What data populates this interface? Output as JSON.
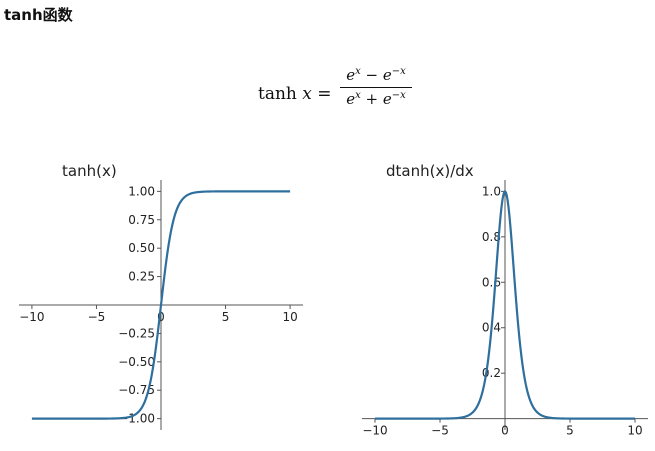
{
  "heading": "tanh函数",
  "formula": {
    "lhs": "tanh",
    "lhs_var": "x",
    "equals": "=",
    "numerator": {
      "a": "e",
      "a_exp": "x",
      "op": "−",
      "b": "e",
      "b_exp": "−x"
    },
    "denominator": {
      "a": "e",
      "a_exp": "x",
      "op": "+",
      "b": "e",
      "b_exp": "−x"
    }
  },
  "colors": {
    "curve": "#2e6f9e",
    "axis": "#555555",
    "text": "#222222"
  },
  "chart_data": [
    {
      "type": "line",
      "title": "tanh(x)",
      "function": "tanh",
      "xlim": [
        -11,
        11
      ],
      "ylim": [
        -1.1,
        1.1
      ],
      "xticks": [
        -10,
        -5,
        0,
        5,
        10
      ],
      "xtick_labels": [
        "−10",
        "−5",
        "0",
        "5",
        "10"
      ],
      "yticks": [
        1.0,
        0.75,
        0.5,
        0.25,
        -0.25,
        -0.5,
        -0.75,
        -1.0
      ],
      "ytick_labels": [
        "1.00",
        "0.75",
        "0.50",
        "0.25",
        "−0.25",
        "−0.50",
        "−0.75",
        "−1.00"
      ],
      "x": [
        -10,
        -5,
        -3,
        -2,
        -1,
        -0.5,
        0,
        0.5,
        1,
        2,
        3,
        5,
        10
      ],
      "y": [
        -1.0,
        -0.9999,
        -0.995,
        -0.964,
        -0.762,
        -0.462,
        0.0,
        0.462,
        0.762,
        0.964,
        0.995,
        0.9999,
        1.0
      ],
      "grid": false
    },
    {
      "type": "line",
      "title": "dtanh(x)/dx",
      "function": "dtanh",
      "xlim": [
        -11,
        11
      ],
      "ylim": [
        -0.05,
        1.05
      ],
      "xticks": [
        -10,
        -5,
        0,
        5,
        10
      ],
      "xtick_labels": [
        "−10",
        "−5",
        "0",
        "5",
        "10"
      ],
      "yticks": [
        1.0,
        0.8,
        0.6,
        0.4,
        0.2
      ],
      "ytick_labels": [
        "1.0",
        "0.8",
        "0.6",
        "0.4",
        "0.2"
      ],
      "x": [
        -10,
        -5,
        -3,
        -2,
        -1,
        -0.5,
        0,
        0.5,
        1,
        2,
        3,
        5,
        10
      ],
      "y": [
        0.0,
        0.0002,
        0.0099,
        0.0707,
        0.42,
        0.7864,
        1.0,
        0.7864,
        0.42,
        0.0707,
        0.0099,
        0.0002,
        0.0
      ],
      "grid": false
    }
  ]
}
